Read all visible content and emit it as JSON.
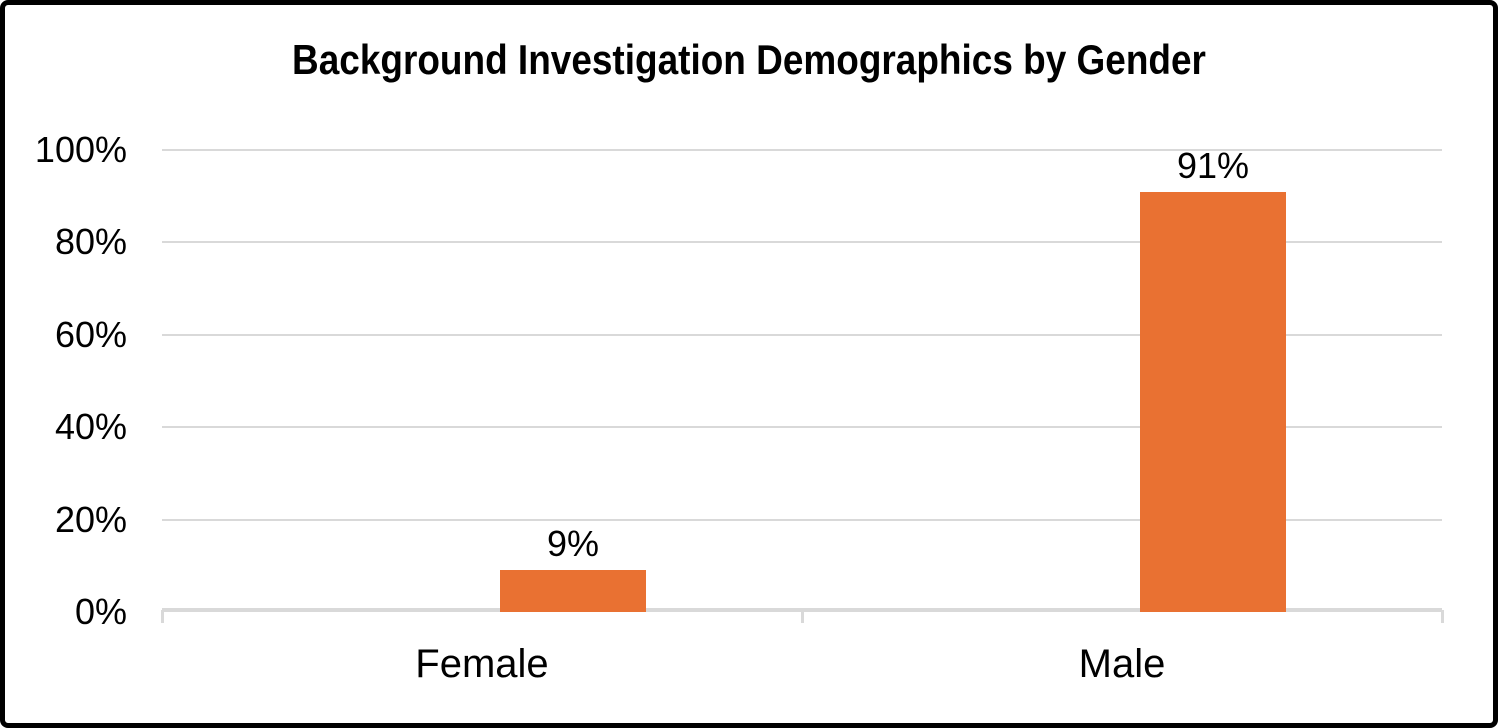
{
  "chart_data": {
    "type": "bar",
    "title": "Background Investigation Demographics by Gender",
    "categories": [
      "Female",
      "Male"
    ],
    "values": [
      9,
      91
    ],
    "data_labels": [
      "9%",
      "91%"
    ],
    "xlabel": "",
    "ylabel": "",
    "y_axis": {
      "min": 0,
      "max": 100,
      "ticks": [
        0,
        20,
        40,
        60,
        80,
        100
      ],
      "tick_labels": [
        "0%",
        "20%",
        "40%",
        "60%",
        "80%",
        "100%"
      ]
    },
    "grid": "horizontal gridlines on",
    "legend": "none",
    "colors": {
      "bar": "#E97132",
      "gridline": "#D9D9D9",
      "axis_line": "#D9D9D9",
      "text": "#000000",
      "background": "#FFFFFF",
      "frame_border": "#000000"
    }
  }
}
